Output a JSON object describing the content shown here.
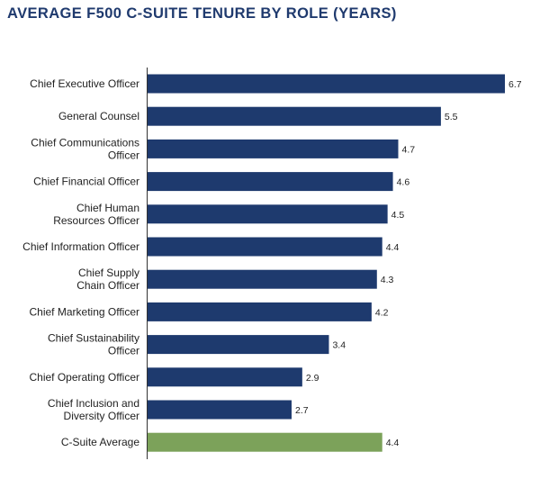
{
  "chart_data": {
    "type": "bar",
    "orientation": "horizontal",
    "title": "AVERAGE F500 C-SUITE TENURE BY ROLE (YEARS)",
    "categories": [
      [
        "Chief Executive Officer"
      ],
      [
        "General Counsel"
      ],
      [
        "Chief Communications",
        "Officer"
      ],
      [
        "Chief Financial Officer"
      ],
      [
        "Chief Human",
        "Resources Officer"
      ],
      [
        "Chief Information Officer"
      ],
      [
        "Chief Supply",
        "Chain Officer"
      ],
      [
        "Chief Marketing Officer"
      ],
      [
        "Chief Sustainability",
        "Officer"
      ],
      [
        "Chief Operating Officer"
      ],
      [
        "Chief Inclusion and",
        "Diversity Officer"
      ],
      [
        "C-Suite Average"
      ]
    ],
    "values": [
      6.7,
      5.5,
      4.7,
      4.6,
      4.5,
      4.4,
      4.3,
      4.2,
      3.4,
      2.9,
      2.7,
      4.4
    ],
    "value_labels": [
      "6.7",
      "5.5",
      "4.7",
      "4.6",
      "4.5",
      "4.4",
      "4.3",
      "4.2",
      "3.4",
      "2.9",
      "2.7",
      "4.4"
    ],
    "xlim": [
      0,
      6.7
    ],
    "grid": false,
    "colors": {
      "bar": "#1e3a6e",
      "average_bar": "#7ca25a",
      "axis": "#333333",
      "title": "#1f3a6e"
    }
  }
}
